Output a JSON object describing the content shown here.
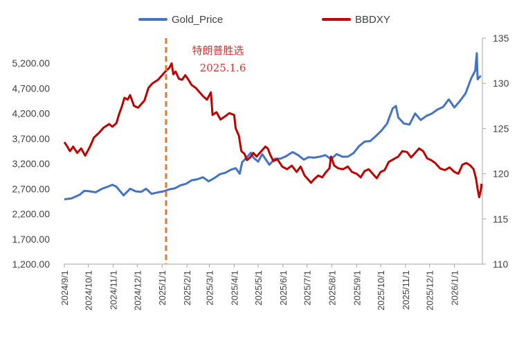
{
  "chart_data": {
    "type": "line",
    "dual_axis": true,
    "legend": {
      "placement": "top",
      "entries": [
        {
          "name": "Gold_Price",
          "color": "#4472c4",
          "axis": "left"
        },
        {
          "name": "BBDXY",
          "color": "#c00000",
          "axis": "right"
        }
      ]
    },
    "left_axis": {
      "ylim": [
        1200,
        5700
      ],
      "ticks": [
        1200,
        1700,
        2200,
        2700,
        3200,
        3700,
        4200,
        4700,
        5200
      ],
      "tick_labels": [
        "1,200.00",
        "1,700.00",
        "2,200.00",
        "2,700.00",
        "3,200.00",
        "3,700.00",
        "4,200.00",
        "4,700.00",
        "5,200.00"
      ]
    },
    "right_axis": {
      "ylim": [
        110,
        135
      ],
      "ticks": [
        110,
        115,
        120,
        125,
        130,
        135
      ],
      "tick_labels": [
        "110",
        "115",
        "120",
        "125",
        "130",
        "135"
      ]
    },
    "x_axis": {
      "range": [
        "2024-09-01",
        "2026-02-05"
      ],
      "ticks": [
        "2024-09-01",
        "2024-10-01",
        "2024-11-01",
        "2024-12-01",
        "2025-01-01",
        "2025-02-01",
        "2025-03-01",
        "2025-04-01",
        "2025-05-01",
        "2025-06-01",
        "2025-07-01",
        "2025-08-01",
        "2025-09-01",
        "2025-10-01",
        "2025-11-01",
        "2025-12-01",
        "2026-01-01"
      ],
      "tick_labels": [
        "2024/9/1",
        "2024/10/1",
        "2024/11/1",
        "2024/12/1",
        "2025/1/1",
        "2025/2/1",
        "2025/3/1",
        "2025/4/1",
        "2025/5/1",
        "2025/6/1",
        "2025/7/1",
        "2025/8/1",
        "2025/9/1",
        "2025/10/1",
        "2025/11/1",
        "2025/12/1",
        "2026/1/1"
      ]
    },
    "annotation": {
      "date": "2025-01-06",
      "line1": "特朗普胜选",
      "line2": "2025.1.6",
      "color": "#e07a2e"
    },
    "series": [
      {
        "name": "Gold_Price",
        "points": [
          [
            "2024-09-01",
            2490
          ],
          [
            "2024-09-10",
            2510
          ],
          [
            "2024-09-20",
            2580
          ],
          [
            "2024-09-26",
            2660
          ],
          [
            "2024-10-03",
            2650
          ],
          [
            "2024-10-10",
            2630
          ],
          [
            "2024-10-18",
            2700
          ],
          [
            "2024-10-25",
            2740
          ],
          [
            "2024-10-31",
            2780
          ],
          [
            "2024-11-05",
            2740
          ],
          [
            "2024-11-14",
            2570
          ],
          [
            "2024-11-22",
            2700
          ],
          [
            "2024-11-29",
            2650
          ],
          [
            "2024-12-06",
            2640
          ],
          [
            "2024-12-12",
            2700
          ],
          [
            "2024-12-19",
            2600
          ],
          [
            "2024-12-27",
            2630
          ],
          [
            "2025-01-03",
            2650
          ],
          [
            "2025-01-10",
            2690
          ],
          [
            "2025-01-17",
            2710
          ],
          [
            "2025-01-24",
            2770
          ],
          [
            "2025-01-31",
            2800
          ],
          [
            "2025-02-07",
            2870
          ],
          [
            "2025-02-14",
            2890
          ],
          [
            "2025-02-21",
            2930
          ],
          [
            "2025-02-28",
            2850
          ],
          [
            "2025-03-07",
            2910
          ],
          [
            "2025-03-14",
            2990
          ],
          [
            "2025-03-21",
            3020
          ],
          [
            "2025-03-28",
            3080
          ],
          [
            "2025-04-03",
            3110
          ],
          [
            "2025-04-08",
            3000
          ],
          [
            "2025-04-11",
            3230
          ],
          [
            "2025-04-17",
            3330
          ],
          [
            "2025-04-22",
            3420
          ],
          [
            "2025-04-25",
            3320
          ],
          [
            "2025-05-01",
            3240
          ],
          [
            "2025-05-06",
            3390
          ],
          [
            "2025-05-15",
            3180
          ],
          [
            "2025-05-22",
            3300
          ],
          [
            "2025-05-29",
            3300
          ],
          [
            "2025-06-05",
            3350
          ],
          [
            "2025-06-13",
            3430
          ],
          [
            "2025-06-20",
            3370
          ],
          [
            "2025-06-27",
            3280
          ],
          [
            "2025-07-03",
            3330
          ],
          [
            "2025-07-10",
            3320
          ],
          [
            "2025-07-17",
            3340
          ],
          [
            "2025-07-24",
            3370
          ],
          [
            "2025-07-31",
            3290
          ],
          [
            "2025-08-07",
            3390
          ],
          [
            "2025-08-14",
            3340
          ],
          [
            "2025-08-21",
            3340
          ],
          [
            "2025-08-28",
            3410
          ],
          [
            "2025-09-04",
            3550
          ],
          [
            "2025-09-11",
            3640
          ],
          [
            "2025-09-18",
            3650
          ],
          [
            "2025-09-25",
            3750
          ],
          [
            "2025-10-02",
            3860
          ],
          [
            "2025-10-09",
            4000
          ],
          [
            "2025-10-16",
            4300
          ],
          [
            "2025-10-20",
            4350
          ],
          [
            "2025-10-23",
            4120
          ],
          [
            "2025-10-30",
            4000
          ],
          [
            "2025-11-06",
            3980
          ],
          [
            "2025-11-13",
            4200
          ],
          [
            "2025-11-20",
            4070
          ],
          [
            "2025-11-27",
            4150
          ],
          [
            "2025-12-04",
            4200
          ],
          [
            "2025-12-11",
            4280
          ],
          [
            "2025-12-18",
            4330
          ],
          [
            "2025-12-25",
            4480
          ],
          [
            "2026-01-01",
            4320
          ],
          [
            "2026-01-08",
            4450
          ],
          [
            "2026-01-15",
            4600
          ],
          [
            "2026-01-22",
            4900
          ],
          [
            "2026-01-27",
            5050
          ],
          [
            "2026-01-29",
            5400
          ],
          [
            "2026-01-30",
            4880
          ],
          [
            "2026-02-03",
            4950
          ]
        ]
      },
      {
        "name": "BBDXY",
        "points": [
          [
            "2024-09-01",
            123.5
          ],
          [
            "2024-09-04",
            123.1
          ],
          [
            "2024-09-08",
            122.5
          ],
          [
            "2024-09-12",
            123.0
          ],
          [
            "2024-09-17",
            122.3
          ],
          [
            "2024-09-22",
            122.8
          ],
          [
            "2024-09-27",
            122.0
          ],
          [
            "2024-10-03",
            123.0
          ],
          [
            "2024-10-08",
            124.0
          ],
          [
            "2024-10-14",
            124.5
          ],
          [
            "2024-10-20",
            125.1
          ],
          [
            "2024-10-27",
            125.5
          ],
          [
            "2024-10-31",
            125.2
          ],
          [
            "2024-11-05",
            125.6
          ],
          [
            "2024-11-08",
            126.5
          ],
          [
            "2024-11-12",
            127.5
          ],
          [
            "2024-11-15",
            128.4
          ],
          [
            "2024-11-19",
            128.2
          ],
          [
            "2024-11-22",
            128.7
          ],
          [
            "2024-11-27",
            127.5
          ],
          [
            "2024-12-02",
            127.3
          ],
          [
            "2024-12-05",
            127.6
          ],
          [
            "2024-12-10",
            128.1
          ],
          [
            "2024-12-15",
            129.5
          ],
          [
            "2024-12-20",
            130.0
          ],
          [
            "2024-12-27",
            130.4
          ],
          [
            "2025-01-02",
            131.0
          ],
          [
            "2025-01-06",
            131.4
          ],
          [
            "2025-01-10",
            131.7
          ],
          [
            "2025-01-13",
            132.2
          ],
          [
            "2025-01-15",
            131.0
          ],
          [
            "2025-01-18",
            131.3
          ],
          [
            "2025-01-22",
            130.5
          ],
          [
            "2025-01-26",
            130.4
          ],
          [
            "2025-01-30",
            130.9
          ],
          [
            "2025-02-03",
            130.4
          ],
          [
            "2025-02-07",
            129.8
          ],
          [
            "2025-02-12",
            129.5
          ],
          [
            "2025-02-17",
            129.0
          ],
          [
            "2025-02-21",
            128.6
          ],
          [
            "2025-02-26",
            128.2
          ],
          [
            "2025-03-03",
            129.0
          ],
          [
            "2025-03-05",
            126.5
          ],
          [
            "2025-03-10",
            126.8
          ],
          [
            "2025-03-15",
            126.0
          ],
          [
            "2025-03-20",
            126.3
          ],
          [
            "2025-03-26",
            126.7
          ],
          [
            "2025-04-01",
            126.5
          ],
          [
            "2025-04-03",
            125.0
          ],
          [
            "2025-04-07",
            124.2
          ],
          [
            "2025-04-10",
            122.5
          ],
          [
            "2025-04-14",
            122.2
          ],
          [
            "2025-04-17",
            121.5
          ],
          [
            "2025-04-21",
            121.8
          ],
          [
            "2025-04-25",
            122.3
          ],
          [
            "2025-04-29",
            121.9
          ],
          [
            "2025-05-05",
            122.5
          ],
          [
            "2025-05-10",
            123.0
          ],
          [
            "2025-05-13",
            122.8
          ],
          [
            "2025-05-16",
            122.1
          ],
          [
            "2025-05-20",
            121.4
          ],
          [
            "2025-05-25",
            121.6
          ],
          [
            "2025-05-31",
            120.8
          ],
          [
            "2025-06-06",
            120.5
          ],
          [
            "2025-06-12",
            120.9
          ],
          [
            "2025-06-18",
            120.2
          ],
          [
            "2025-06-23",
            120.8
          ],
          [
            "2025-06-28",
            119.8
          ],
          [
            "2025-07-02",
            119.4
          ],
          [
            "2025-07-06",
            119.0
          ],
          [
            "2025-07-10",
            119.4
          ],
          [
            "2025-07-15",
            119.8
          ],
          [
            "2025-07-20",
            119.6
          ],
          [
            "2025-07-24",
            120.1
          ],
          [
            "2025-07-29",
            120.6
          ],
          [
            "2025-07-31",
            121.9
          ],
          [
            "2025-08-04",
            120.9
          ],
          [
            "2025-08-09",
            120.6
          ],
          [
            "2025-08-15",
            120.5
          ],
          [
            "2025-08-21",
            120.8
          ],
          [
            "2025-08-26",
            120.2
          ],
          [
            "2025-09-01",
            120.0
          ],
          [
            "2025-09-06",
            119.6
          ],
          [
            "2025-09-11",
            120.3
          ],
          [
            "2025-09-16",
            120.5
          ],
          [
            "2025-09-21",
            120.0
          ],
          [
            "2025-09-26",
            119.5
          ],
          [
            "2025-10-01",
            120.2
          ],
          [
            "2025-10-06",
            120.4
          ],
          [
            "2025-10-11",
            121.3
          ],
          [
            "2025-10-17",
            121.6
          ],
          [
            "2025-10-23",
            121.9
          ],
          [
            "2025-10-28",
            122.5
          ],
          [
            "2025-11-03",
            122.4
          ],
          [
            "2025-11-08",
            121.8
          ],
          [
            "2025-11-13",
            122.3
          ],
          [
            "2025-11-18",
            122.8
          ],
          [
            "2025-11-23",
            122.5
          ],
          [
            "2025-11-28",
            121.7
          ],
          [
            "2025-12-03",
            121.5
          ],
          [
            "2025-12-08",
            121.2
          ],
          [
            "2025-12-14",
            120.6
          ],
          [
            "2025-12-20",
            120.4
          ],
          [
            "2025-12-26",
            120.7
          ],
          [
            "2026-01-01",
            120.2
          ],
          [
            "2026-01-06",
            120.0
          ],
          [
            "2026-01-11",
            121.0
          ],
          [
            "2026-01-16",
            121.2
          ],
          [
            "2026-01-21",
            120.9
          ],
          [
            "2026-01-25",
            120.5
          ],
          [
            "2026-01-28",
            119.5
          ],
          [
            "2026-01-30",
            118.3
          ],
          [
            "2026-02-01",
            117.4
          ],
          [
            "2026-02-03",
            118.2
          ],
          [
            "2026-02-04",
            118.9
          ]
        ]
      }
    ]
  }
}
